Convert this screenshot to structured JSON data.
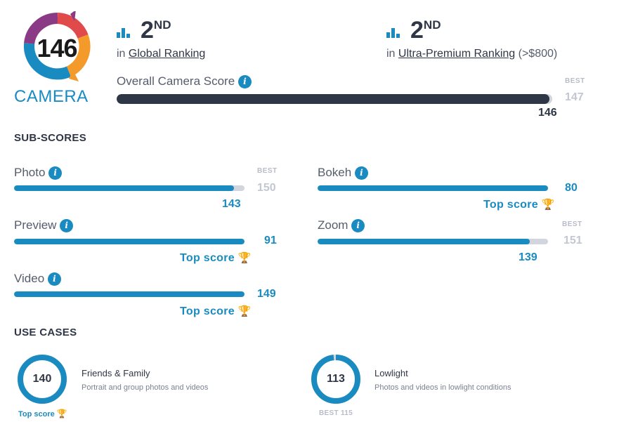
{
  "badge": {
    "score": "146",
    "label": "CAMERA"
  },
  "rankings": [
    {
      "rank": "2",
      "suffix": "ND",
      "prefix": "in",
      "link": "Global Ranking",
      "extra": ""
    },
    {
      "rank": "2",
      "suffix": "ND",
      "prefix": "in",
      "link": "Ultra-Premium Ranking",
      "extra": "(>$800)"
    }
  ],
  "overall": {
    "label": "Overall Camera Score",
    "score": 146,
    "best": 147,
    "best_label": "BEST"
  },
  "subscores": {
    "title": "SUB-SCORES",
    "items": [
      {
        "label": "Photo",
        "score": 143,
        "best": 150,
        "best_label": "BEST",
        "top_score": ""
      },
      {
        "label": "Bokeh",
        "score": 80,
        "best": 80,
        "best_label": "",
        "top_score": "Top score"
      },
      {
        "label": "Preview",
        "score": 91,
        "best": 91,
        "best_label": "",
        "top_score": "Top score"
      },
      {
        "label": "Zoom",
        "score": 139,
        "best": 151,
        "best_label": "BEST",
        "top_score": ""
      },
      {
        "label": "Video",
        "score": 149,
        "best": 149,
        "best_label": "",
        "top_score": "Top score"
      }
    ]
  },
  "use_cases": {
    "title": "USE CASES",
    "items": [
      {
        "score": 140,
        "best": 140,
        "title": "Friends & Family",
        "desc": "Portrait and group photos and videos",
        "footer": "Top score"
      },
      {
        "score": 113,
        "best": 115,
        "title": "Lowlight",
        "desc": "Photos and videos in lowlight conditions",
        "footer": "BEST 115"
      }
    ]
  },
  "colors": {
    "accent": "#1a8bc1",
    "dark": "#2f3646",
    "track": "#d2d5dd",
    "trophy": "#f0b323"
  }
}
